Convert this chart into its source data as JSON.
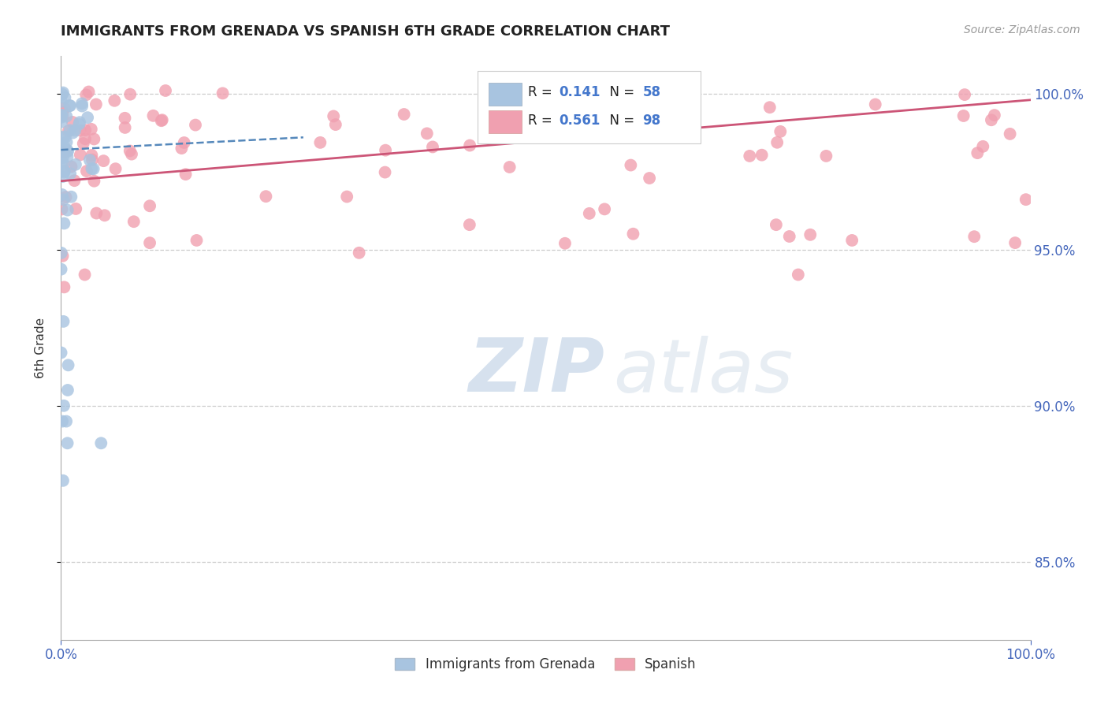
{
  "title": "IMMIGRANTS FROM GRENADA VS SPANISH 6TH GRADE CORRELATION CHART",
  "source": "Source: ZipAtlas.com",
  "ylabel": "6th Grade",
  "ytick_labels": [
    "85.0%",
    "90.0%",
    "95.0%",
    "100.0%"
  ],
  "ytick_values": [
    0.85,
    0.9,
    0.95,
    1.0
  ],
  "xlim": [
    0.0,
    1.0
  ],
  "ylim": [
    0.825,
    1.012
  ],
  "blue_R": 0.141,
  "blue_N": 58,
  "pink_R": 0.561,
  "pink_N": 98,
  "blue_color": "#a8c4e0",
  "pink_color": "#f0a0b0",
  "blue_line_color": "#5588bb",
  "pink_line_color": "#cc5577",
  "legend_blue_label": "Immigrants from Grenada",
  "legend_pink_label": "Spanish",
  "watermark_zip": "ZIP",
  "watermark_atlas": "atlas",
  "title_fontsize": 13,
  "source_fontsize": 10,
  "tick_fontsize": 12,
  "ylabel_fontsize": 11
}
